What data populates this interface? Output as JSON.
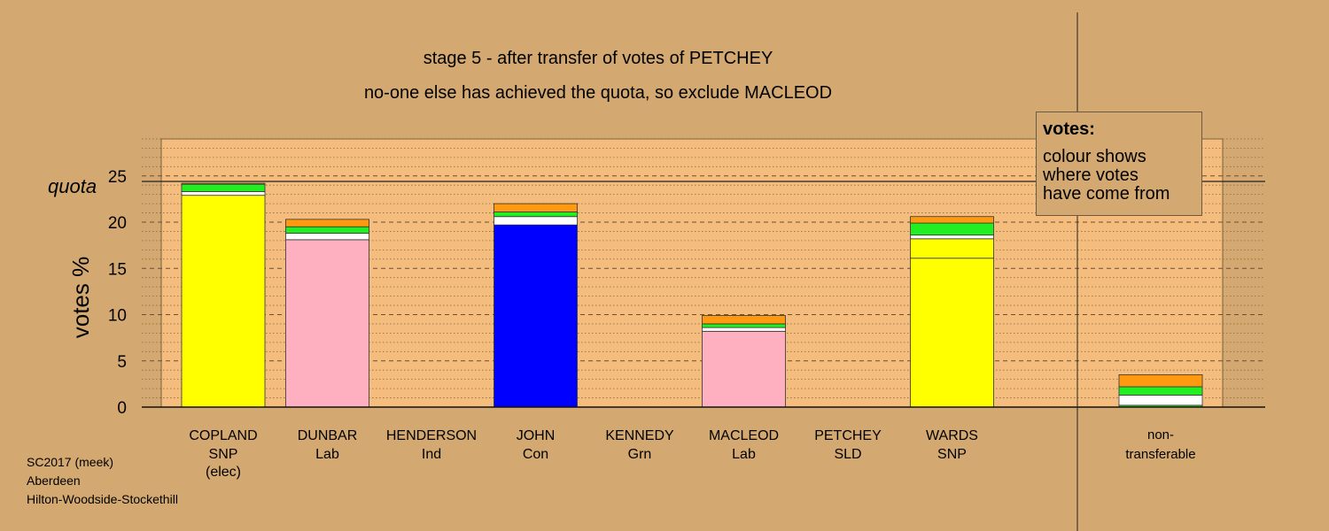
{
  "title": "stage 5 - after transfer of votes of PETCHEY",
  "subtitle": "no-one else has achieved the quota, so exclude MACLEOD",
  "quota_label": "quota",
  "legend": {
    "title": "votes:",
    "lines": [
      "colour shows",
      "where votes",
      "have come from"
    ]
  },
  "footer": [
    "SC2017 (meek)",
    "Aberdeen",
    "Hilton-Woodside-Stockethill"
  ],
  "colors": {
    "background": "#d4a971",
    "plot_area": "#f4bd7e",
    "snp": "#ffff00",
    "lab": "#ffb0c0",
    "con": "#0000ff",
    "white_transfer": "#ffffff",
    "green_transfer": "#22ee22",
    "orange_transfer": "#ff9a10"
  },
  "chart_data": {
    "type": "bar",
    "stacked": true,
    "title": "stage 5 - after transfer of votes of PETCHEY",
    "ylabel": "votes %",
    "ylim": [
      0,
      29
    ],
    "yticks": [
      0,
      5,
      10,
      15,
      20,
      25
    ],
    "quota": 24.4,
    "grid": true,
    "candidates": [
      {
        "name": "COPLAND",
        "party": "SNP",
        "note": "(elec)",
        "segments": [
          {
            "source": "first",
            "color": "#ffff00",
            "value": 22.9
          },
          {
            "source": "white",
            "color": "#ffffff",
            "value": 0.4
          },
          {
            "source": "green",
            "color": "#22ee22",
            "value": 0.8
          },
          {
            "source": "orange",
            "color": "#ff9a10",
            "value": 0.1
          }
        ]
      },
      {
        "name": "DUNBAR",
        "party": "Lab",
        "note": "",
        "segments": [
          {
            "source": "first",
            "color": "#ffb0c0",
            "value": 18.1
          },
          {
            "source": "white",
            "color": "#ffffff",
            "value": 0.7
          },
          {
            "source": "green",
            "color": "#22ee22",
            "value": 0.7
          },
          {
            "source": "orange",
            "color": "#ff9a10",
            "value": 0.8
          }
        ]
      },
      {
        "name": "HENDERSON",
        "party": "Ind",
        "note": "",
        "segments": []
      },
      {
        "name": "JOHN",
        "party": "Con",
        "note": "",
        "segments": [
          {
            "source": "first",
            "color": "#0000ff",
            "value": 19.7
          },
          {
            "source": "white",
            "color": "#ffffff",
            "value": 0.9
          },
          {
            "source": "green",
            "color": "#22ee22",
            "value": 0.5
          },
          {
            "source": "orange",
            "color": "#ff9a10",
            "value": 0.9
          }
        ]
      },
      {
        "name": "KENNEDY",
        "party": "Grn",
        "note": "",
        "segments": []
      },
      {
        "name": "MACLEOD",
        "party": "Lab",
        "note": "",
        "segments": [
          {
            "source": "first",
            "color": "#ffb0c0",
            "value": 8.2
          },
          {
            "source": "white",
            "color": "#ffffff",
            "value": 0.4
          },
          {
            "source": "green",
            "color": "#22ee22",
            "value": 0.4
          },
          {
            "source": "orange",
            "color": "#ff9a10",
            "value": 0.9
          }
        ]
      },
      {
        "name": "PETCHEY",
        "party": "SLD",
        "note": "",
        "segments": []
      },
      {
        "name": "WARDS",
        "party": "SNP",
        "note": "",
        "segments": [
          {
            "source": "first-snp",
            "color": "#ffff00",
            "value": 16.1
          },
          {
            "source": "snp-transfer",
            "color": "#ffff00",
            "value": 2.1
          },
          {
            "source": "white",
            "color": "#ffffff",
            "value": 0.4
          },
          {
            "source": "green",
            "color": "#22ee22",
            "value": 1.3
          },
          {
            "source": "orange",
            "color": "#ff9a10",
            "value": 0.7
          }
        ]
      }
    ],
    "non_transferable": {
      "label": [
        "non-",
        "transferable"
      ],
      "segments": [
        {
          "source": "green",
          "color": "#22ee22",
          "value": 0.2
        },
        {
          "source": "white",
          "color": "#ffffff",
          "value": 1.1
        },
        {
          "source": "green",
          "color": "#22ee22",
          "value": 0.9
        },
        {
          "source": "orange",
          "color": "#ff9a10",
          "value": 1.3
        }
      ]
    }
  }
}
